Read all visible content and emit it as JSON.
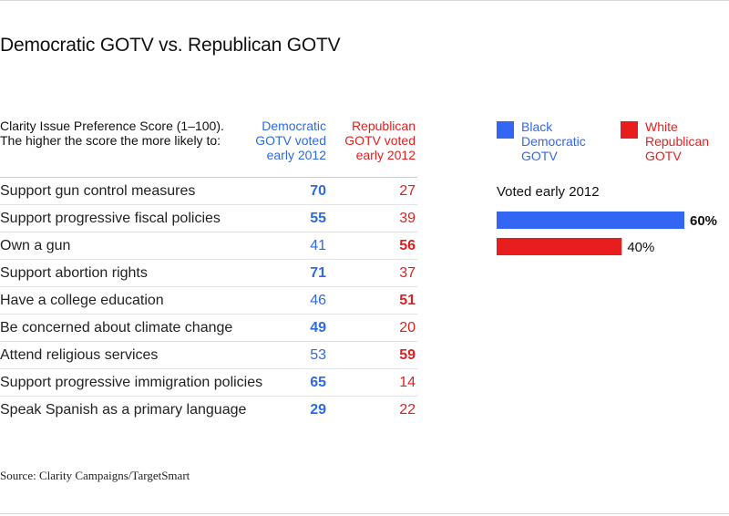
{
  "title": "Democratic GOTV vs. Republican GOTV",
  "table": {
    "header_line1": "Clarity Issue Preference Score (1–100).",
    "header_line2": "The higher the score the more likely to:",
    "dem_header": [
      "Democratic",
      "GOTV voted",
      "early 2012"
    ],
    "rep_header": [
      "Republican",
      "GOTV voted",
      "early 2012"
    ],
    "rows": [
      {
        "label": "Support gun control measures",
        "dem": "70",
        "rep": "27",
        "dem_bold": true,
        "rep_bold": false
      },
      {
        "label": "Support progressive fiscal policies",
        "dem": "55",
        "rep": "39",
        "dem_bold": true,
        "rep_bold": false
      },
      {
        "label": "Own a gun",
        "dem": "41",
        "rep": "56",
        "dem_bold": false,
        "rep_bold": true
      },
      {
        "label": "Support abortion rights",
        "dem": "71",
        "rep": "37",
        "dem_bold": true,
        "rep_bold": false
      },
      {
        "label": "Have a college education",
        "dem": "46",
        "rep": "51",
        "dem_bold": false,
        "rep_bold": true
      },
      {
        "label": "Be concerned about climate change",
        "dem": "49",
        "rep": "20",
        "dem_bold": true,
        "rep_bold": false
      },
      {
        "label": "Attend religious services",
        "dem": "53",
        "rep": "59",
        "dem_bold": false,
        "rep_bold": true
      },
      {
        "label": "Support progressive immigration policies",
        "dem": "65",
        "rep": "14",
        "dem_bold": true,
        "rep_bold": false
      },
      {
        "label": "Speak Spanish as a primary language",
        "dem": "29",
        "rep": "22",
        "dem_bold": true,
        "rep_bold": false
      }
    ]
  },
  "legend": [
    {
      "lines": [
        "Black",
        "Democratic",
        "GOTV"
      ],
      "color": "#3366f2"
    },
    {
      "lines": [
        "White",
        "Republican",
        "GOTV"
      ],
      "color": "#e81e1e"
    }
  ],
  "chart_data": {
    "type": "bar",
    "orientation": "horizontal",
    "title": "Voted early 2012",
    "categories": [
      "Black Democratic GOTV",
      "White Republican GOTV"
    ],
    "values": [
      60,
      40
    ],
    "value_labels": [
      "60%",
      "40%"
    ],
    "label_bold": [
      true,
      false
    ],
    "colors": [
      "#3366f2",
      "#e81e1e"
    ],
    "xlim": [
      0,
      60
    ],
    "unit": "%"
  },
  "source": "Source: Clarity Campaigns/TargetSmart",
  "colors": {
    "dem_text": "#2f6ae0",
    "rep_text": "#e01f1f"
  }
}
